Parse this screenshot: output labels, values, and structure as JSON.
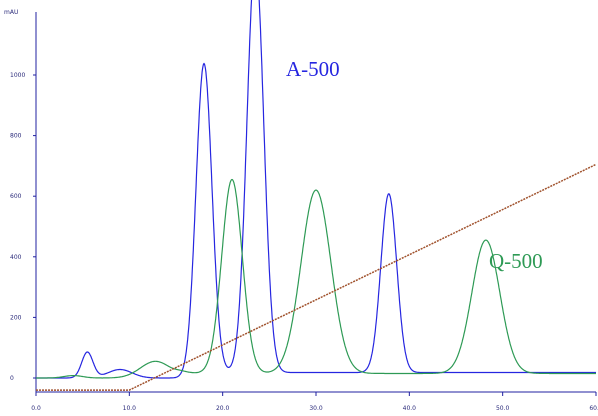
{
  "chart_data": {
    "type": "line",
    "ylabel": "mAU",
    "xlim": [
      0,
      60
    ],
    "ylim": [
      -50,
      1450
    ],
    "x_ticks": [
      "0.0",
      "10.0",
      "20.0",
      "30.0",
      "40.0",
      "50.0",
      "60.0"
    ],
    "y_ticks": [
      "0",
      "200",
      "400",
      "600",
      "800",
      "1000"
    ],
    "grid": false,
    "colors": {
      "axis": "#2020a0",
      "A-500": "#2626e0",
      "Q-500": "#2e9a55",
      "gradient": "#a0522d"
    },
    "series": [
      {
        "name": "A-500",
        "baseline": 0,
        "peaks": [
          {
            "x": 5.5,
            "height": 85,
            "width": 0.6
          },
          {
            "x": 9.0,
            "height": 28,
            "width": 1.3
          },
          {
            "x": 18.0,
            "height": 1020,
            "width": 0.85
          },
          {
            "x": 23.5,
            "height": 1365,
            "width": 0.9
          },
          {
            "x": 37.8,
            "height": 590,
            "width": 0.85
          }
        ],
        "rise": {
          "x": 16.5,
          "level": 18
        }
      },
      {
        "name": "Q-500",
        "baseline": 0,
        "peaks": [
          {
            "x": 4.0,
            "height": 8,
            "width": 1.0
          },
          {
            "x": 12.8,
            "height": 55,
            "width": 1.6
          },
          {
            "x": 21.0,
            "height": 640,
            "width": 1.1
          },
          {
            "x": 30.0,
            "height": 605,
            "width": 1.6
          },
          {
            "x": 48.2,
            "height": 440,
            "width": 1.5
          }
        ],
        "rise": {
          "x": 15.0,
          "level": 15
        }
      },
      {
        "name": "gradient",
        "x": [
          0,
          10,
          60
        ],
        "y": [
          -40,
          -40,
          705
        ]
      }
    ],
    "annotations": [
      {
        "text": "A-500",
        "series": "A-500"
      },
      {
        "text": "Q-500",
        "series": "Q-500"
      }
    ]
  }
}
